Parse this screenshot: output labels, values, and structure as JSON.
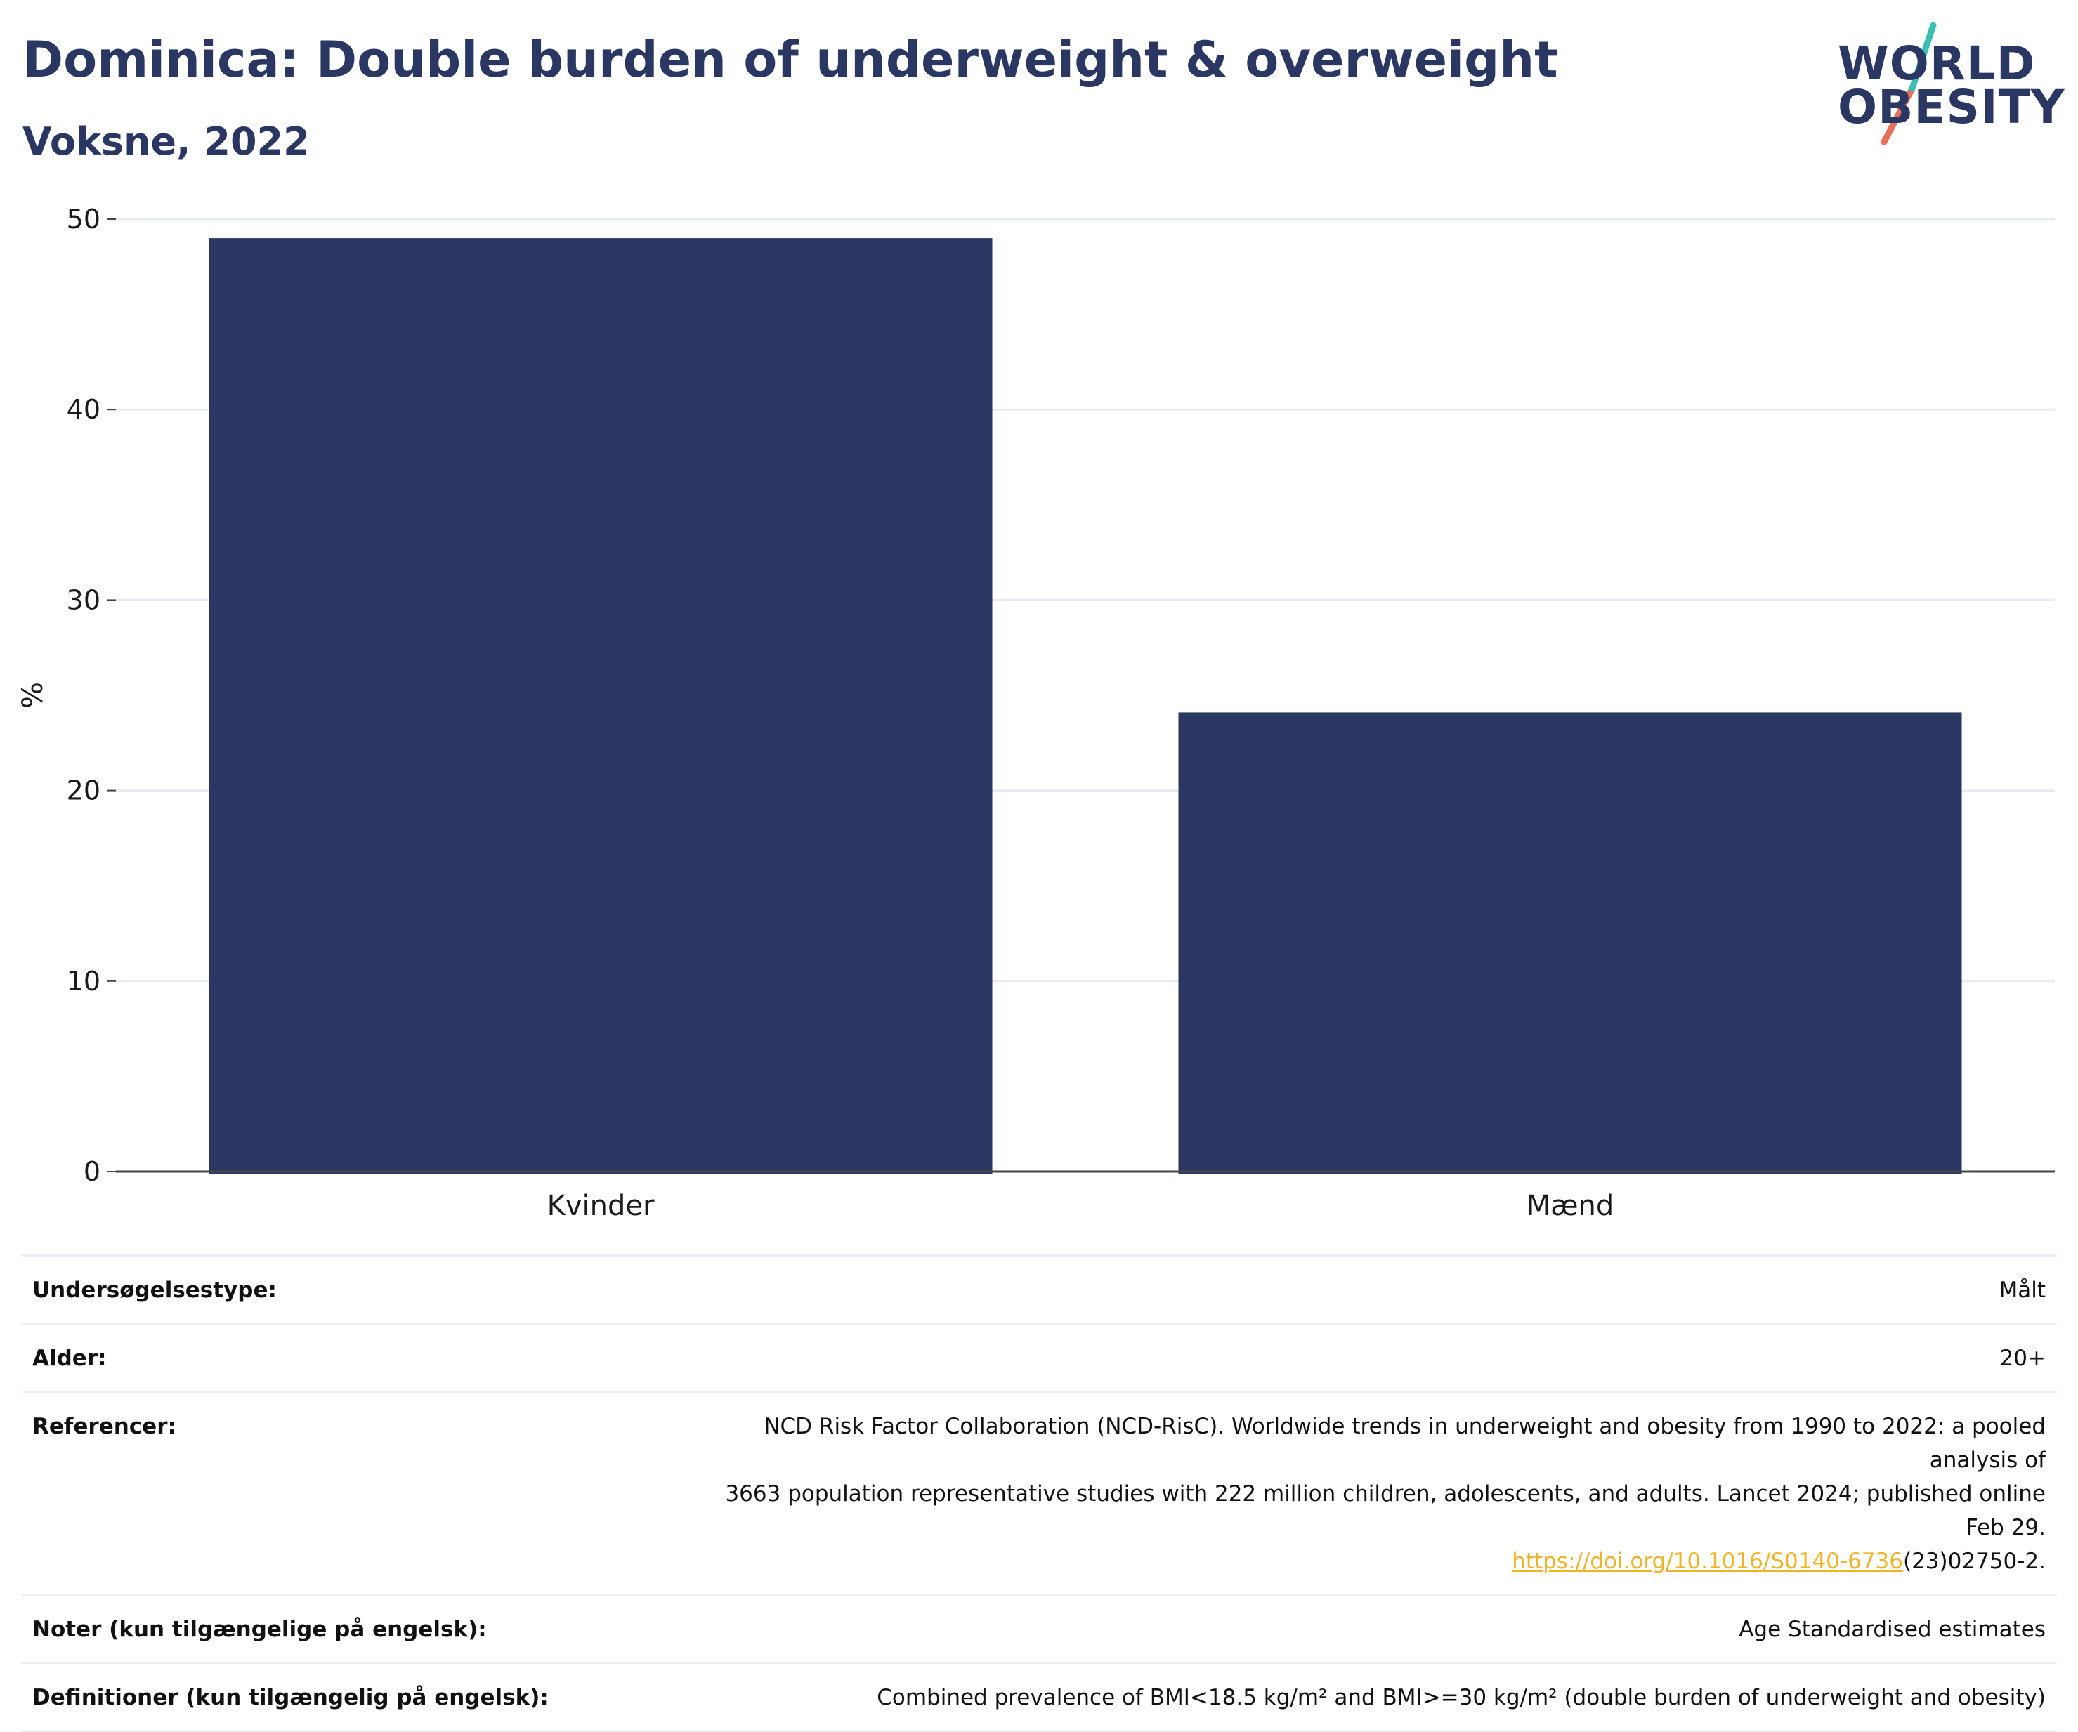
{
  "header": {
    "title": "Dominica: Double burden of underweight & overweight",
    "subtitle": "Voksne, 2022"
  },
  "logo": {
    "line1": "WORLD",
    "line2": "OBESITY",
    "accent_teal": "#3bbfb5",
    "accent_coral": "#e8705a"
  },
  "chart_data": {
    "type": "bar",
    "categories": [
      "Kvinder",
      "Mænd"
    ],
    "values": [
      49.0,
      24.1
    ],
    "title": "Dominica: Double burden of underweight & overweight",
    "subtitle": "Voksne, 2022",
    "xlabel": "",
    "ylabel": "%",
    "ylim": [
      0,
      50
    ],
    "yticks": [
      0,
      10,
      20,
      30,
      40,
      50
    ],
    "grid": true,
    "bar_color": "#2b3763"
  },
  "info": {
    "rows": [
      {
        "key": "Undersøgelsestype:",
        "value": "Målt"
      },
      {
        "key": "Alder:",
        "value": "20+"
      },
      {
        "key": "Referencer:",
        "value_line1": "NCD Risk Factor Collaboration (NCD-RisC). Worldwide trends in underweight and obesity from 1990 to 2022: a pooled analysis of",
        "value_line2": "3663 population representative studies with 222 million children, adolescents, and adults. Lancet 2024; published online Feb 29.",
        "link_text": "https://doi.org/10.1016/S0140-6736",
        "link_suffix": "(23)02750-2."
      },
      {
        "key": "Noter (kun tilgængelige på engelsk):",
        "value": "Age Standardised estimates"
      },
      {
        "key": "Definitioner (kun tilgængelig på engelsk):",
        "value": "Combined prevalence of BMI<18.5 kg/m² and BMI>=30 kg/m² (double burden of underweight and obesity)"
      }
    ]
  }
}
